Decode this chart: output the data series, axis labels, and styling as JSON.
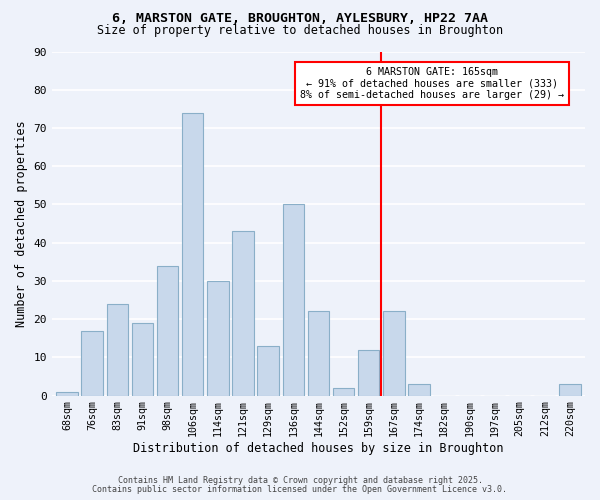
{
  "title_line1": "6, MARSTON GATE, BROUGHTON, AYLESBURY, HP22 7AA",
  "title_line2": "Size of property relative to detached houses in Broughton",
  "xlabel": "Distribution of detached houses by size in Broughton",
  "ylabel": "Number of detached properties",
  "categories": [
    "68sqm",
    "76sqm",
    "83sqm",
    "91sqm",
    "98sqm",
    "106sqm",
    "114sqm",
    "121sqm",
    "129sqm",
    "136sqm",
    "144sqm",
    "152sqm",
    "159sqm",
    "167sqm",
    "174sqm",
    "182sqm",
    "190sqm",
    "197sqm",
    "205sqm",
    "212sqm",
    "220sqm"
  ],
  "values": [
    1,
    17,
    24,
    19,
    34,
    74,
    30,
    43,
    13,
    50,
    22,
    2,
    12,
    22,
    3,
    0,
    0,
    0,
    0,
    0,
    3
  ],
  "bar_color": "#c8d8eb",
  "bar_edge_color": "#8aafc8",
  "background_color": "#eef2fa",
  "grid_color": "#ffffff",
  "vline_color": "red",
  "vline_index": 13,
  "annotation_text": "6 MARSTON GATE: 165sqm\n← 91% of detached houses are smaller (333)\n8% of semi-detached houses are larger (29) →",
  "annotation_box_color": "white",
  "annotation_box_edge": "red",
  "ylim": [
    0,
    90
  ],
  "yticks": [
    0,
    10,
    20,
    30,
    40,
    50,
    60,
    70,
    80,
    90
  ],
  "footer_line1": "Contains HM Land Registry data © Crown copyright and database right 2025.",
  "footer_line2": "Contains public sector information licensed under the Open Government Licence v3.0."
}
